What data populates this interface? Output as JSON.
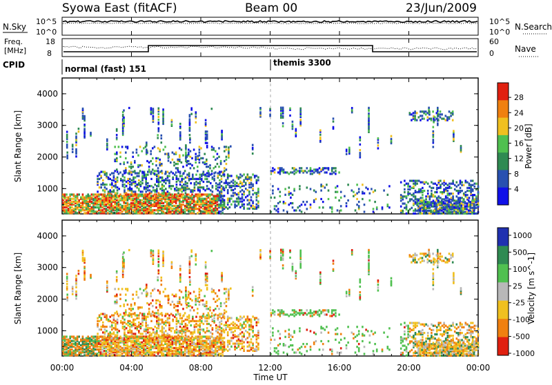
{
  "header": {
    "station": "Syowa East (fitACF)",
    "beam": "Beam 00",
    "date": "23/Jun/2009"
  },
  "noise_panel": {
    "left_label": "N.Sky",
    "right_label": "N.Search",
    "left_ticks": [
      "10^5",
      "10^0"
    ],
    "right_ticks": [
      "10^5",
      "10^0"
    ]
  },
  "freq_panel": {
    "left_label_line1": "Freq.",
    "left_label_line2": "[MHz]",
    "right_label": "Nave",
    "left_ticks": [
      "18",
      "8"
    ],
    "right_ticks": [
      "60",
      "0"
    ]
  },
  "cpid_panel": {
    "label": "CPID",
    "entries": [
      {
        "name": "normal (fast) 151",
        "start_hour": 0
      },
      {
        "name": "themis 3300",
        "start_hour": 12
      }
    ]
  },
  "chart_data": [
    {
      "type": "heatmap",
      "quantity": "Power",
      "ylabel": "Slant Range [km]",
      "colorbar_label": "Power [dB]",
      "colorbar_ticks": [
        "28",
        "24",
        "20",
        "16",
        "12",
        "8",
        "4"
      ],
      "colorbar_range": [
        0,
        32
      ],
      "y_ticks": [
        "4000",
        "3000",
        "2000",
        "1000"
      ],
      "ylim": [
        200,
        4500
      ],
      "xlim": [
        0,
        24
      ],
      "colors": [
        "#1010e8",
        "#2850b0",
        "#2f8a52",
        "#50c050",
        "#f0c020",
        "#f08010",
        "#e02010"
      ]
    },
    {
      "type": "heatmap",
      "quantity": "Velocity",
      "ylabel": "Slant Range [km]",
      "colorbar_label": "Velocity [m s^-1]",
      "colorbar_ticks": [
        "1000",
        "500",
        "100",
        "25",
        "-25",
        "-100",
        "-500",
        "-1000"
      ],
      "y_ticks": [
        "4000",
        "3000",
        "2000",
        "1000"
      ],
      "ylim": [
        200,
        4500
      ],
      "xlim": [
        0,
        24
      ],
      "colors": [
        "#2030b0",
        "#2f8a52",
        "#50c050",
        "#b8b8b8",
        "#f0c020",
        "#f08010",
        "#e02010"
      ]
    }
  ],
  "x_axis": {
    "ticks": [
      "00:00",
      "04:00",
      "08:00",
      "12:00",
      "16:00",
      "20:00",
      "00:00"
    ],
    "label": "Time UT"
  }
}
